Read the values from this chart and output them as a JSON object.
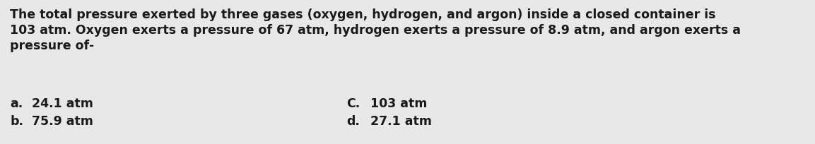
{
  "background_color": "#e8e8e8",
  "text_color": "#1a1a1a",
  "line1": "The total pressure exerted by three gases (oxygen, hydrogen, and argon) inside a closed container is",
  "line2": "103 atm. Oxygen exerts a pressure of 67 atm, hydrogen exerts a pressure of 8.9 atm, and argon exerts a",
  "line3": "pressure of-",
  "option_a_label": "a.",
  "option_a_text": "24.1 atm",
  "option_b_label": "b.",
  "option_b_text": "75.9 atm",
  "option_c_label": "C.",
  "option_c_text": "103 atm",
  "option_d_label": "d.",
  "option_d_text": "27.1 atm",
  "font_size_body": 12.5,
  "font_size_options": 12.5,
  "fig_width": 11.53,
  "fig_height": 2.05,
  "dpi": 100
}
